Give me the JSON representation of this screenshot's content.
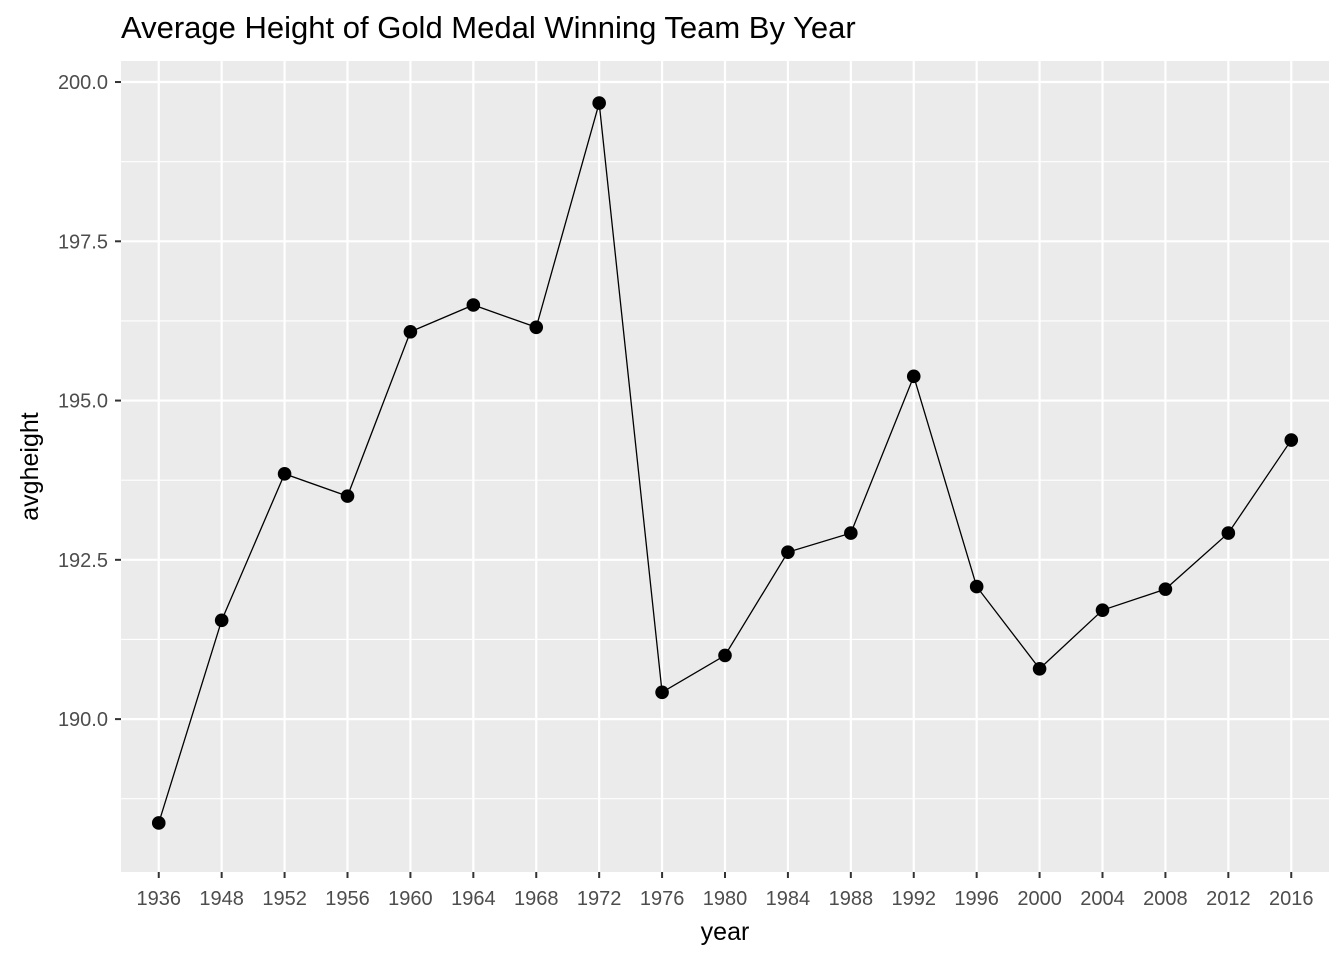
{
  "chart_data": {
    "type": "line",
    "title": "Average Height of Gold Medal Winning Team By Year",
    "xlabel": "year",
    "ylabel": "avgheight",
    "categories": [
      "1936",
      "1948",
      "1952",
      "1956",
      "1960",
      "1964",
      "1968",
      "1972",
      "1976",
      "1980",
      "1984",
      "1988",
      "1992",
      "1996",
      "2000",
      "2004",
      "2008",
      "2012",
      "2016"
    ],
    "series": [
      {
        "values": [
          188.37,
          191.55,
          193.85,
          193.5,
          196.08,
          196.5,
          196.15,
          199.67,
          190.42,
          191.0,
          192.62,
          192.92,
          195.38,
          192.08,
          190.79,
          191.71,
          192.04,
          192.92,
          194.38
        ]
      }
    ],
    "yticks": [
      190.0,
      192.5,
      195.0,
      197.5,
      200.0
    ],
    "ytick_labels": [
      "190.0",
      "192.5",
      "195.0",
      "197.5",
      "200.0"
    ],
    "ylim": [
      187.6,
      200.33
    ],
    "grid": true,
    "colors": {
      "panel": "#ebebeb",
      "grid": "#ffffff",
      "line": "#000000",
      "point": "#000000"
    }
  }
}
